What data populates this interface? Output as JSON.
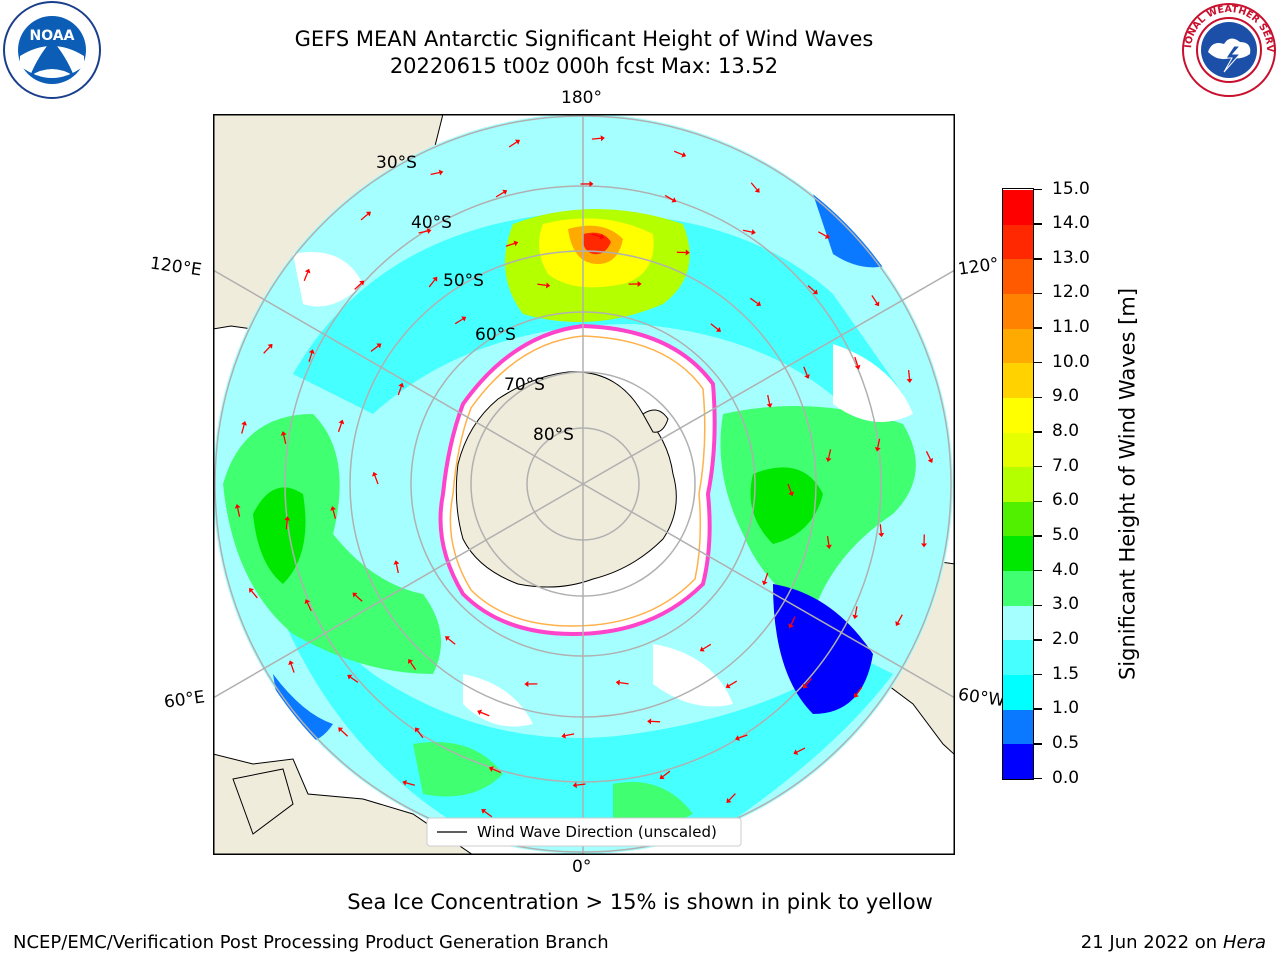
{
  "header": {
    "title_line1": "GEFS MEAN Antarctic Significant Height of Wind Waves",
    "title_line2": "20220615 t00z 000h fcst   Max: 13.52"
  },
  "map": {
    "projection": "south-polar-stereographic",
    "longitude_labels": {
      "top": "180°",
      "bottom": "0°",
      "upper_left": "120°E",
      "upper_right": "120°",
      "lower_left": "60°E",
      "lower_right": "60°W"
    },
    "latitude_labels": [
      "30°S",
      "40°S",
      "50°S",
      "60°S",
      "70°S",
      "80°S"
    ],
    "legend_label": "Wind Wave Direction (unscaled)",
    "colors": {
      "land": "#efecdc",
      "ocean_nodata": "#ffffff",
      "sea_ice_edge": "#ff44cc",
      "direction_arrow": "#ff0000",
      "grid": "#b0b0b0"
    }
  },
  "colorbar": {
    "title": "Significant Height of Wind Waves [m]",
    "tick_labels": [
      "0.0",
      "0.5",
      "1.0",
      "1.5",
      "2.0",
      "3.0",
      "4.0",
      "5.0",
      "6.0",
      "7.0",
      "8.0",
      "9.0",
      "10.0",
      "11.0",
      "12.0",
      "13.0",
      "14.0",
      "15.0"
    ],
    "colors": [
      "#0000ff",
      "#0a78ff",
      "#00ffff",
      "#46ffff",
      "#a6ffff",
      "#40ff70",
      "#00e800",
      "#50f000",
      "#b4ff00",
      "#e6ff00",
      "#ffff00",
      "#ffd200",
      "#ffaa00",
      "#ff8200",
      "#ff5a00",
      "#ff2800",
      "#ff0000"
    ]
  },
  "notes": {
    "sea_ice": "Sea Ice Concentration > 15% is shown in pink to yellow"
  },
  "footer": {
    "left": "NCEP/EMC/Verification Post Processing Product Generation Branch",
    "right_date": "21 Jun 2022 on",
    "right_machine": "Hera"
  },
  "logos": {
    "noaa": "NOAA",
    "nws_ring": "NATIONAL WEATHER SERVICE"
  }
}
